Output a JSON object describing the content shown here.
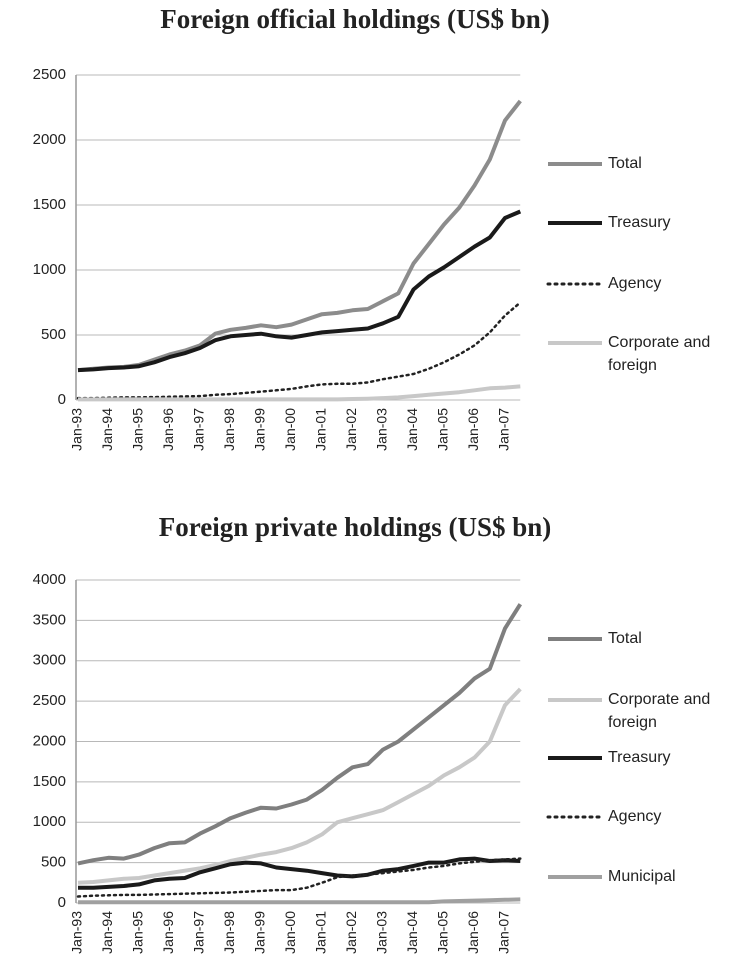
{
  "chart_data": [
    {
      "type": "line",
      "title": "Foreign official holdings (US$ bn)",
      "categories": [
        "Jan-93",
        null,
        "Jan-94",
        null,
        "Jan-95",
        null,
        "Jan-96",
        null,
        "Jan-97",
        null,
        "Jan-98",
        null,
        "Jan-99",
        null,
        "Jan-00",
        null,
        "Jan-01",
        null,
        "Jan-02",
        null,
        "Jan-03",
        null,
        "Jan-04",
        null,
        "Jan-05",
        null,
        "Jan-06",
        null,
        "Jan-07",
        null
      ],
      "ylim": [
        0,
        2500
      ],
      "yticks": [
        0,
        500,
        1000,
        1500,
        2000,
        2500
      ],
      "grid": true,
      "series": [
        {
          "name": "Total",
          "color": "#8c8c8c",
          "values": [
            230,
            240,
            250,
            255,
            270,
            310,
            350,
            380,
            420,
            510,
            540,
            555,
            575,
            560,
            580,
            620,
            660,
            670,
            690,
            700,
            760,
            820,
            1050,
            1200,
            1350,
            1480,
            1650,
            1850,
            2150,
            2300
          ]
        },
        {
          "name": "Treasury",
          "color": "#1a1a1a",
          "values": [
            230,
            235,
            245,
            250,
            260,
            290,
            330,
            360,
            400,
            460,
            490,
            500,
            510,
            490,
            480,
            500,
            520,
            530,
            540,
            550,
            590,
            640,
            850,
            950,
            1020,
            1100,
            1180,
            1250,
            1400,
            1450
          ]
        },
        {
          "name": "Agency",
          "color": "#222222",
          "style": "dotted",
          "values": [
            15,
            15,
            18,
            20,
            20,
            22,
            25,
            28,
            30,
            40,
            45,
            55,
            65,
            75,
            85,
            105,
            120,
            125,
            125,
            135,
            160,
            180,
            200,
            240,
            290,
            350,
            420,
            520,
            650,
            750
          ]
        },
        {
          "name": "Corporate and foreign",
          "color": "#c8c8c8",
          "values": [
            5,
            5,
            5,
            5,
            5,
            5,
            5,
            5,
            5,
            5,
            5,
            5,
            5,
            5,
            5,
            5,
            5,
            5,
            8,
            10,
            15,
            20,
            30,
            40,
            50,
            60,
            75,
            90,
            95,
            105
          ]
        }
      ]
    },
    {
      "type": "line",
      "title": "Foreign private holdings (US$ bn)",
      "categories": [
        "Jan-93",
        null,
        "Jan-94",
        null,
        "Jan-95",
        null,
        "Jan-96",
        null,
        "Jan-97",
        null,
        "Jan-98",
        null,
        "Jan-99",
        null,
        "Jan-00",
        null,
        "Jan-01",
        null,
        "Jan-02",
        null,
        "Jan-03",
        null,
        "Jan-04",
        null,
        "Jan-05",
        null,
        "Jan-06",
        null,
        "Jan-07",
        null
      ],
      "ylim": [
        0,
        4000
      ],
      "yticks": [
        0,
        500,
        1000,
        1500,
        2000,
        2500,
        3000,
        3500,
        4000
      ],
      "grid": true,
      "series": [
        {
          "name": "Total",
          "color": "#7f7f7f",
          "values": [
            490,
            530,
            560,
            550,
            600,
            680,
            740,
            750,
            860,
            950,
            1050,
            1120,
            1180,
            1170,
            1220,
            1280,
            1400,
            1550,
            1680,
            1720,
            1900,
            2000,
            2150,
            2300,
            2450,
            2600,
            2780,
            2900,
            3400,
            3700
          ]
        },
        {
          "name": "Corporate and foreign",
          "color": "#c8c8c8",
          "values": [
            250,
            260,
            280,
            300,
            310,
            340,
            370,
            400,
            430,
            470,
            520,
            560,
            600,
            630,
            680,
            750,
            850,
            1000,
            1050,
            1100,
            1150,
            1250,
            1350,
            1450,
            1580,
            1680,
            1800,
            2000,
            2450,
            2650
          ]
        },
        {
          "name": "Treasury",
          "color": "#1a1a1a",
          "values": [
            190,
            190,
            200,
            210,
            230,
            280,
            300,
            310,
            380,
            430,
            480,
            500,
            490,
            440,
            420,
            400,
            370,
            340,
            330,
            350,
            400,
            420,
            460,
            500,
            500,
            540,
            550,
            520,
            530,
            520
          ]
        },
        {
          "name": "Agency",
          "color": "#222222",
          "style": "dotted",
          "values": [
            80,
            90,
            95,
            100,
            100,
            105,
            110,
            115,
            120,
            125,
            130,
            140,
            150,
            160,
            160,
            190,
            250,
            320,
            340,
            350,
            370,
            390,
            410,
            440,
            460,
            490,
            510,
            530,
            540,
            550
          ]
        },
        {
          "name": "Municipal",
          "color": "#a0a0a0",
          "values": [
            10,
            10,
            10,
            10,
            10,
            10,
            10,
            10,
            10,
            10,
            10,
            10,
            10,
            10,
            10,
            10,
            10,
            10,
            10,
            10,
            10,
            10,
            10,
            10,
            20,
            25,
            30,
            35,
            40,
            45
          ]
        }
      ]
    }
  ]
}
